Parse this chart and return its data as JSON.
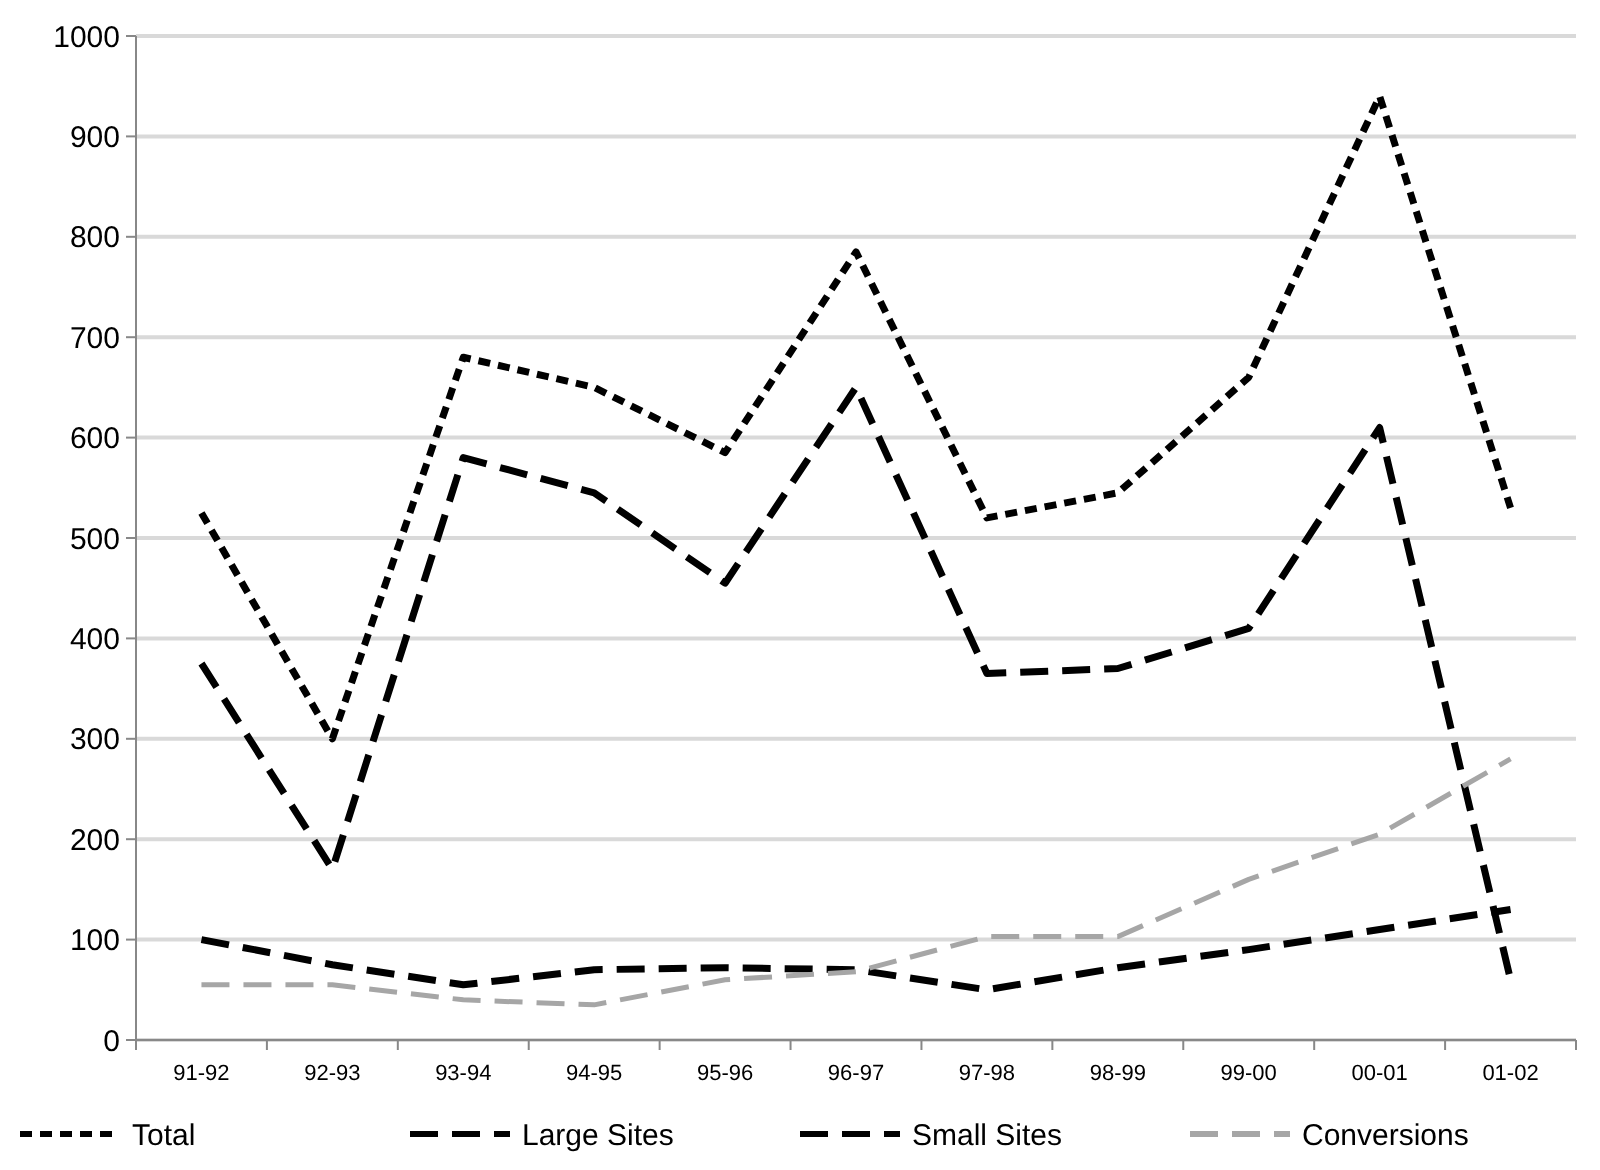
{
  "chart_data": {
    "type": "line",
    "categories": [
      "91-92",
      "92-93",
      "93-94",
      "94-95",
      "95-96",
      "96-97",
      "97-98",
      "98-99",
      "99-00",
      "00-01",
      "01-02"
    ],
    "series": [
      {
        "name": "Total",
        "color": "#000000",
        "line_style": "dotted",
        "values": [
          525,
          300,
          680,
          650,
          585,
          785,
          520,
          545,
          660,
          940,
          530
        ]
      },
      {
        "name": "Large Sites",
        "color": "#000000",
        "line_style": "dashed",
        "values": [
          375,
          170,
          580,
          545,
          455,
          650,
          365,
          370,
          410,
          610,
          60
        ]
      },
      {
        "name": "Small Sites",
        "color": "#000000",
        "line_style": "dashed",
        "values": [
          100,
          75,
          55,
          70,
          72,
          70,
          50,
          72,
          90,
          110,
          130
        ]
      },
      {
        "name": "Conversions",
        "color": "#a6a6a6",
        "line_style": "dashed",
        "values": [
          55,
          55,
          40,
          35,
          60,
          68,
          103,
          103,
          160,
          205,
          280
        ]
      }
    ],
    "ylim": [
      0,
      1000
    ],
    "yticks": [
      0,
      100,
      200,
      300,
      400,
      500,
      600,
      700,
      800,
      900,
      1000
    ],
    "grid": "y",
    "legend": "bottom",
    "marker": "none"
  }
}
